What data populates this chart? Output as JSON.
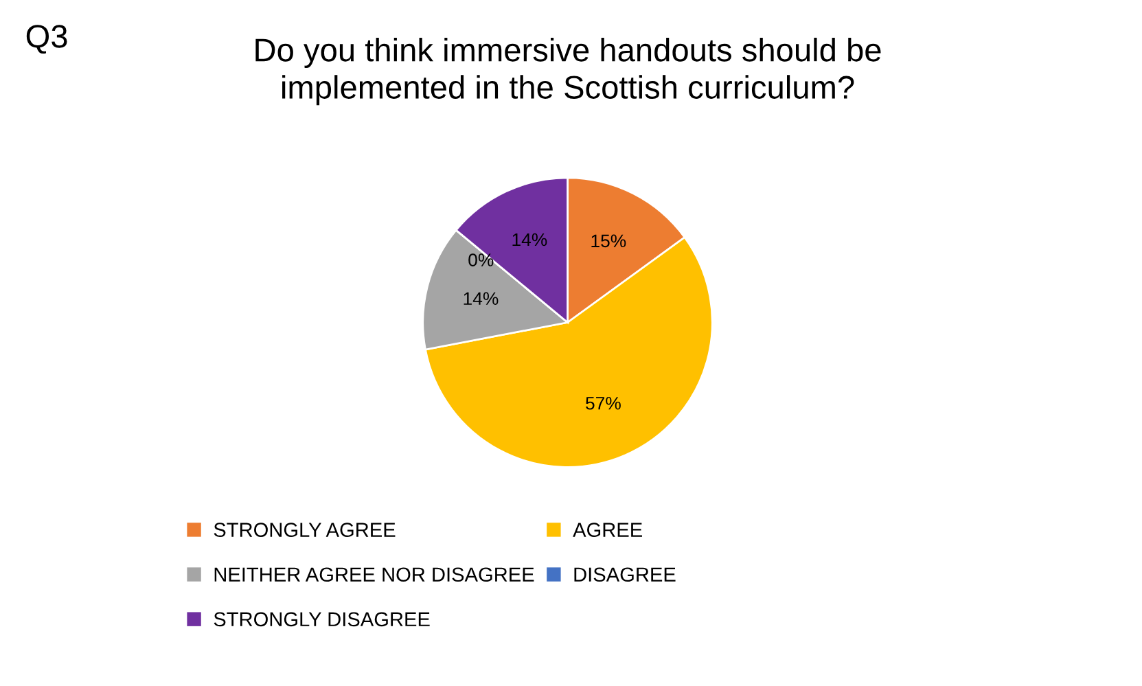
{
  "chart_data": {
    "type": "pie",
    "title": "Do you think immersive handouts should be implemented in the Scottish curriculum?",
    "annotations": [
      "Q3"
    ],
    "categories": [
      "STRONGLY AGREE",
      "AGREE",
      "NEITHER AGREE NOR DISAGREE",
      "DISAGREE",
      "STRONGLY DISAGREE"
    ],
    "values": [
      15,
      57,
      14,
      0,
      14
    ],
    "value_labels": [
      "15%",
      "57%",
      "14%",
      "0%",
      "14%"
    ],
    "colors": [
      "#ed7d31",
      "#ffc000",
      "#a5a5a5",
      "#4472c4",
      "#7030a0"
    ],
    "legend": "bottom"
  }
}
